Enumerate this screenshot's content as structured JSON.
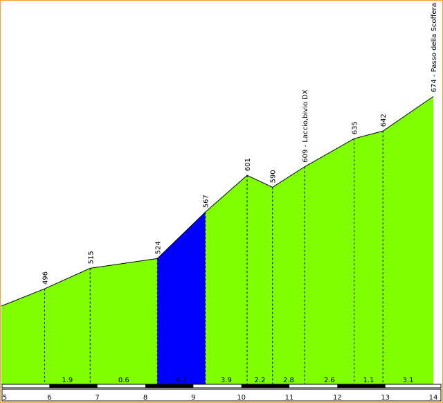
{
  "chart_data": {
    "type": "area",
    "title": "",
    "xlabel": "",
    "ylabel": "",
    "xlim": [
      5,
      14
    ],
    "x_ticks": [
      5,
      6,
      7,
      8,
      9,
      10,
      11,
      12,
      13,
      14
    ],
    "colors": {
      "fill": "#80ff00",
      "highlight": "#0000ff",
      "line": "#000000",
      "frame": "#f0a030"
    },
    "profile": [
      {
        "x": 5.0,
        "y": 480,
        "label": ""
      },
      {
        "x": 5.9,
        "y": 496,
        "label": "496"
      },
      {
        "x": 6.85,
        "y": 515,
        "label": "515"
      },
      {
        "x": 8.25,
        "y": 524,
        "label": "524"
      },
      {
        "x": 9.25,
        "y": 567,
        "label": "567"
      },
      {
        "x": 10.12,
        "y": 601,
        "label": "601"
      },
      {
        "x": 10.65,
        "y": 590,
        "label": "590"
      },
      {
        "x": 11.32,
        "y": 609,
        "label": "609 - Laccio,bivio DX"
      },
      {
        "x": 12.35,
        "y": 635,
        "label": "635"
      },
      {
        "x": 12.95,
        "y": 642,
        "label": "642"
      },
      {
        "x": 14.0,
        "y": 674,
        "label": "674 - Passo della Scoffera"
      }
    ],
    "segments": [
      {
        "from": 5.9,
        "to": 6.85,
        "gradient": "1.9",
        "highlight": false
      },
      {
        "from": 6.85,
        "to": 8.25,
        "gradient": "0.6",
        "highlight": false
      },
      {
        "from": 8.25,
        "to": 9.25,
        "gradient": "4.2",
        "highlight": true
      },
      {
        "from": 9.25,
        "to": 10.12,
        "gradient": "3.9",
        "highlight": false
      },
      {
        "from": 10.12,
        "to": 10.65,
        "gradient": "2.2",
        "highlight": false
      },
      {
        "from": 10.65,
        "to": 11.32,
        "gradient": "2.8",
        "highlight": false
      },
      {
        "from": 11.32,
        "to": 12.35,
        "gradient": "2.6",
        "highlight": false
      },
      {
        "from": 12.35,
        "to": 12.95,
        "gradient": "1.1",
        "highlight": false
      },
      {
        "from": 12.95,
        "to": 14.0,
        "gradient": "3.1",
        "highlight": false
      }
    ]
  }
}
